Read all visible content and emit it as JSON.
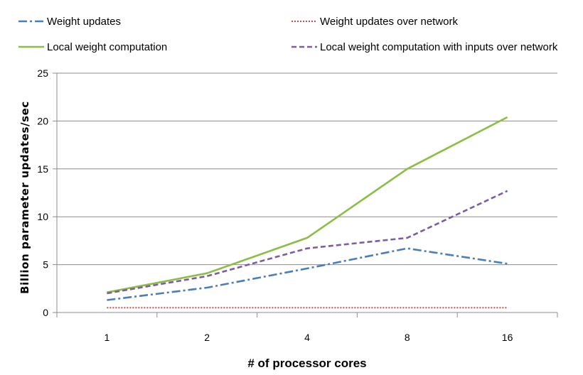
{
  "chart_data": {
    "type": "line",
    "title": "",
    "xlabel": "# of processor cores",
    "ylabel": "Billion parameter updates/sec",
    "categories": [
      "1",
      "2",
      "4",
      "8",
      "16"
    ],
    "ylim": [
      0,
      25
    ],
    "yticks": [
      "0",
      "5",
      "10",
      "15",
      "20",
      "25"
    ],
    "grid": "horizontal",
    "legend_position": "top",
    "series": [
      {
        "name": "Weight updates",
        "values": [
          1.3,
          2.6,
          4.6,
          6.7,
          5.1
        ],
        "color": "#4a7ebb",
        "style": "dash-dot"
      },
      {
        "name": "Weight updates over network",
        "values": [
          0.5,
          0.5,
          0.5,
          0.5,
          0.5
        ],
        "color": "#c0504d",
        "style": "dotted"
      },
      {
        "name": "Local weight computation",
        "values": [
          2.1,
          4.1,
          7.8,
          15.0,
          20.4
        ],
        "color": "#8bbe45",
        "style": "solid"
      },
      {
        "name": "Local weight computation with inputs over network",
        "values": [
          2.0,
          3.8,
          6.7,
          7.8,
          12.7
        ],
        "color": "#7d5ca3",
        "style": "dashed"
      }
    ]
  }
}
